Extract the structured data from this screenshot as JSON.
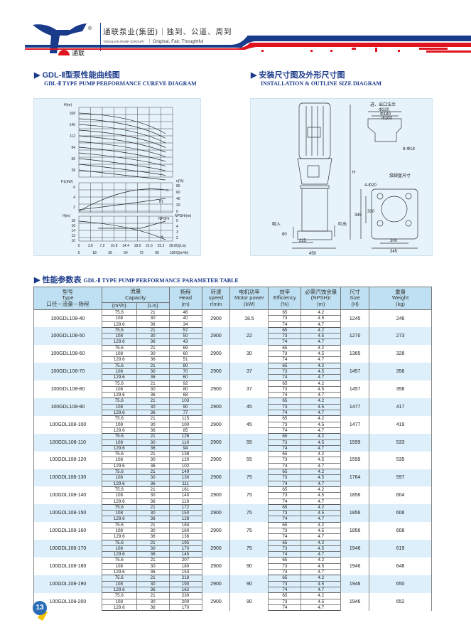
{
  "header": {
    "brand_cn": "通联泵业(集团)｜独到、公道、周到",
    "brand_en": "TONGLIAN PUMP (GROUP)",
    "slogan_en": "｜ Original, Fair, Thoughtful",
    "logo_text": "通联",
    "registered": "®",
    "colors": {
      "blue": "#1a3a8a",
      "red": "#e0141e"
    }
  },
  "curve_section": {
    "title_cn": "GDL-Ⅱ型泵性能曲线图",
    "title_en": "GDL-Ⅱ TYPE PUMP PERFORMANCE CUREVE DIAGRAM",
    "h_label": "H(m)",
    "h_ticks": [
      "168",
      "140",
      "112",
      "84",
      "56",
      "28"
    ],
    "p_label": "P1(kW)",
    "p_ticks": [
      "6",
      "4",
      "2"
    ],
    "eta_label": "η(%)",
    "eta_ticks": [
      "80",
      "60",
      "40",
      "20",
      "0"
    ],
    "hb_label": "H(m)",
    "hb_ticks": [
      "18",
      "16",
      "14",
      "12",
      "10"
    ],
    "npsh_label": "NPSHr(m)",
    "npsh_ticks": [
      "5",
      "4",
      "3",
      "2"
    ],
    "curve_labels": [
      "η",
      "P1",
      "NPSHr",
      "H"
    ],
    "q_ls_label": "Q(L/s)",
    "q_ls_ticks": [
      "0",
      "3.6",
      "7.2",
      "10.8",
      "14.4",
      "18.0",
      "21.6",
      "25.2",
      "28.8"
    ],
    "q_m3h_label": "Q(m³/h)",
    "q_m3h_ticks": [
      "0",
      "18",
      "36",
      "54",
      "72",
      "90",
      "108"
    ]
  },
  "install_section": {
    "title_cn": "安装尺寸图及外形尺寸图",
    "title_en": "INSTALLATION & OUTLINE SIZE DIAGRAM",
    "flange_title": "进、出口法兰",
    "flange_dims": [
      "Φ220",
      "Φ180",
      "Φ100",
      "8-Φ18"
    ],
    "base_title": "泵脚盘尺寸",
    "base_holes": "4-Φ20",
    "base_dims": [
      "345",
      "300",
      "300",
      "345"
    ],
    "height_label": "H",
    "inlet": "吸入",
    "outlet": "吐出",
    "bottom_dims": [
      "225",
      "450"
    ],
    "offset": "80"
  },
  "table_section": {
    "title_cn": "性能参数表",
    "title_en": "GDL-Ⅱ TYPE PUMP PERFORMANCE PARAMETER TABLE",
    "headers": {
      "type": [
        "型号",
        "Type",
        "口径－流量－扬程"
      ],
      "capacity": [
        "流量",
        "Capacity"
      ],
      "cap_m3h": "(m³/h)",
      "cap_ls": "(L/s)",
      "head": [
        "扬程",
        "Head",
        "(m)"
      ],
      "speed": [
        "转速",
        "speed",
        "r/min"
      ],
      "power": [
        "电机功率",
        "Motor power",
        "(kW)"
      ],
      "eff": [
        "效率",
        "Efficiency",
        "(%)"
      ],
      "npsh": [
        "必需汽蚀余量",
        "(NPSH)r",
        "(m)"
      ],
      "size": [
        "尺寸",
        "Size",
        "(H)"
      ],
      "weight": [
        "重量",
        "Weight",
        "(kg)"
      ]
    },
    "rows": [
      {
        "type": "100GDL108-40",
        "flow": [
          "75.6",
          "108",
          "129.6"
        ],
        "ls": [
          "21",
          "30",
          "36"
        ],
        "head": [
          "46",
          "40",
          "34"
        ],
        "speed": "2900",
        "power": "18.5",
        "eff": [
          "65",
          "73",
          "74"
        ],
        "npsh": [
          "4.2",
          "4.5",
          "4.7"
        ],
        "size": "1245",
        "weight": "246"
      },
      {
        "type": "100GDL108-50",
        "flow": [
          "75.6",
          "108",
          "129.6"
        ],
        "ls": [
          "21",
          "30",
          "36"
        ],
        "head": [
          "57",
          "50",
          "43"
        ],
        "speed": "2900",
        "power": "22",
        "eff": [
          "65",
          "73",
          "74"
        ],
        "npsh": [
          "4.2",
          "4.5",
          "4.7"
        ],
        "size": "1270",
        "weight": "273"
      },
      {
        "type": "100GDL108-60",
        "flow": [
          "75.6",
          "108",
          "129.6"
        ],
        "ls": [
          "21",
          "30",
          "36"
        ],
        "head": [
          "69",
          "60",
          "51"
        ],
        "speed": "2900",
        "power": "30",
        "eff": [
          "65",
          "73",
          "74"
        ],
        "npsh": [
          "4.2",
          "4.5",
          "4.7"
        ],
        "size": "1365",
        "weight": "328"
      },
      {
        "type": "100GDL108-70",
        "flow": [
          "75.6",
          "108",
          "129.6"
        ],
        "ls": [
          "21",
          "30",
          "36"
        ],
        "head": [
          "80",
          "70",
          "60"
        ],
        "speed": "2900",
        "power": "37",
        "eff": [
          "65",
          "73",
          "74"
        ],
        "npsh": [
          "4.2",
          "4.5",
          "4.7"
        ],
        "size": "1457",
        "weight": "356"
      },
      {
        "type": "100GDL108-80",
        "flow": [
          "75.6",
          "108",
          "129.6"
        ],
        "ls": [
          "21",
          "30",
          "36"
        ],
        "head": [
          "92",
          "80",
          "68"
        ],
        "speed": "2900",
        "power": "37",
        "eff": [
          "65",
          "73",
          "74"
        ],
        "npsh": [
          "4.2",
          "4.5",
          "4.7"
        ],
        "size": "1457",
        "weight": "358"
      },
      {
        "type": "100GDL108-90",
        "flow": [
          "75.6",
          "108",
          "129.6"
        ],
        "ls": [
          "21",
          "30",
          "36"
        ],
        "head": [
          "103",
          "90",
          "77"
        ],
        "speed": "2900",
        "power": "45",
        "eff": [
          "65",
          "73",
          "74"
        ],
        "npsh": [
          "4.2",
          "4.5",
          "4.7"
        ],
        "size": "1477",
        "weight": "417"
      },
      {
        "type": "100GDL108-100",
        "flow": [
          "75.6",
          "108",
          "129.6"
        ],
        "ls": [
          "21",
          "30",
          "36"
        ],
        "head": [
          "115",
          "100",
          "85"
        ],
        "speed": "2900",
        "power": "45",
        "eff": [
          "65",
          "73",
          "74"
        ],
        "npsh": [
          "4.2",
          "4.5",
          "4.7"
        ],
        "size": "1477",
        "weight": "419"
      },
      {
        "type": "100GDL108-110",
        "flow": [
          "75.6",
          "108",
          "129.6"
        ],
        "ls": [
          "21",
          "30",
          "36"
        ],
        "head": [
          "126",
          "110",
          "94"
        ],
        "speed": "2900",
        "power": "55",
        "eff": [
          "65",
          "73",
          "74"
        ],
        "npsh": [
          "4.2",
          "4.5",
          "4.7"
        ],
        "size": "1599",
        "weight": "533"
      },
      {
        "type": "100GDL108-120",
        "flow": [
          "75.6",
          "108",
          "129.6"
        ],
        "ls": [
          "21",
          "30",
          "36"
        ],
        "head": [
          "138",
          "120",
          "102"
        ],
        "speed": "2900",
        "power": "55",
        "eff": [
          "65",
          "73",
          "74"
        ],
        "npsh": [
          "4.2",
          "4.5",
          "4.7"
        ],
        "size": "1599",
        "weight": "535"
      },
      {
        "type": "100GDL108-130",
        "flow": [
          "75.6",
          "108",
          "129.6"
        ],
        "ls": [
          "21",
          "30",
          "36"
        ],
        "head": [
          "149",
          "130",
          "111"
        ],
        "speed": "2900",
        "power": "75",
        "eff": [
          "65",
          "73",
          "74"
        ],
        "npsh": [
          "4.2",
          "4.5",
          "4.7"
        ],
        "size": "1764",
        "weight": "597"
      },
      {
        "type": "100GDL108-140",
        "flow": [
          "75.6",
          "108",
          "129.6"
        ],
        "ls": [
          "21",
          "30",
          "36"
        ],
        "head": [
          "161",
          "140",
          "119"
        ],
        "speed": "2900",
        "power": "75",
        "eff": [
          "65",
          "73",
          "74"
        ],
        "npsh": [
          "4.2",
          "4.5",
          "4.7"
        ],
        "size": "1856",
        "weight": "604"
      },
      {
        "type": "100GDL108-150",
        "flow": [
          "75.6",
          "108",
          "129.6"
        ],
        "ls": [
          "21",
          "30",
          "36"
        ],
        "head": [
          "172",
          "150",
          "128"
        ],
        "speed": "2900",
        "power": "75",
        "eff": [
          "65",
          "73",
          "74"
        ],
        "npsh": [
          "4.2",
          "4.5",
          "4.7"
        ],
        "size": "1856",
        "weight": "606"
      },
      {
        "type": "100GDL108-160",
        "flow": [
          "75.6",
          "108",
          "129.6"
        ],
        "ls": [
          "21",
          "30",
          "36"
        ],
        "head": [
          "184",
          "160",
          "136"
        ],
        "speed": "2900",
        "power": "75",
        "eff": [
          "65",
          "73",
          "74"
        ],
        "npsh": [
          "4.2",
          "4.5",
          "4.7"
        ],
        "size": "1856",
        "weight": "608"
      },
      {
        "type": "100GDL108-170",
        "flow": [
          "75.6",
          "108",
          "129.6"
        ],
        "ls": [
          "21",
          "30",
          "36"
        ],
        "head": [
          "195",
          "170",
          "145"
        ],
        "speed": "2900",
        "power": "75",
        "eff": [
          "65",
          "73",
          "74"
        ],
        "npsh": [
          "4.2",
          "4.5",
          "4.7"
        ],
        "size": "1946",
        "weight": "619"
      },
      {
        "type": "100GDL108-180",
        "flow": [
          "75.6",
          "108",
          "129.6"
        ],
        "ls": [
          "21",
          "30",
          "36"
        ],
        "head": [
          "207",
          "180",
          "153"
        ],
        "speed": "2900",
        "power": "90",
        "eff": [
          "65",
          "73",
          "74"
        ],
        "npsh": [
          "4.2",
          "4.5",
          "4.7"
        ],
        "size": "1946",
        "weight": "648"
      },
      {
        "type": "100GDL108-190",
        "flow": [
          "75.6",
          "108",
          "129.6"
        ],
        "ls": [
          "21",
          "30",
          "36"
        ],
        "head": [
          "218",
          "190",
          "162"
        ],
        "speed": "2900",
        "power": "90",
        "eff": [
          "65",
          "73",
          "74"
        ],
        "npsh": [
          "4.2",
          "4.5",
          "4.7"
        ],
        "size": "1946",
        "weight": "650"
      },
      {
        "type": "100GDL108-200",
        "flow": [
          "75.6",
          "108",
          "129.6"
        ],
        "ls": [
          "21",
          "30",
          "36"
        ],
        "head": [
          "230",
          "200",
          "170"
        ],
        "speed": "2900",
        "power": "90",
        "eff": [
          "65",
          "73",
          "74"
        ],
        "npsh": [
          "4.2",
          "4.5",
          "4.7"
        ],
        "size": "1946",
        "weight": "652"
      }
    ]
  },
  "watermark": "通联泵业",
  "page_number": "13"
}
